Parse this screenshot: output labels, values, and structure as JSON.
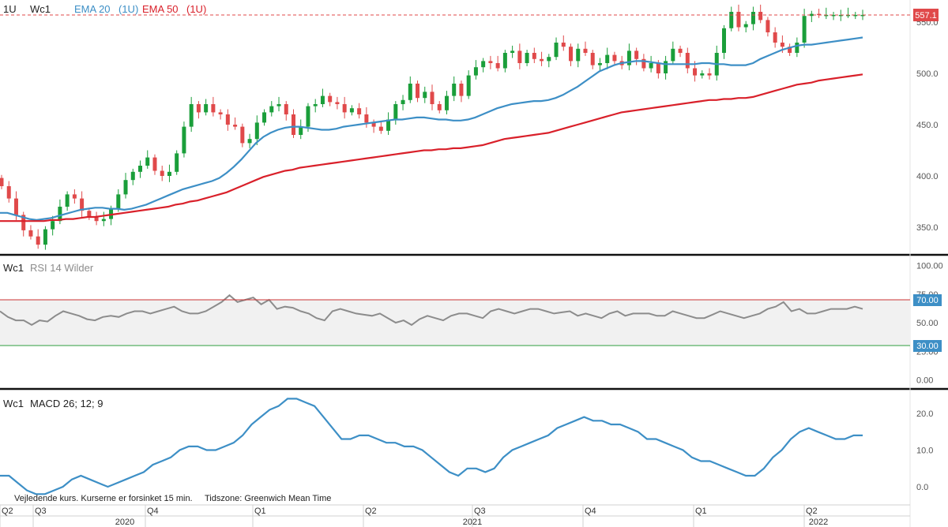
{
  "colors": {
    "up": "#1a9e3a",
    "down": "#e0494a",
    "ema20": "#3d8fc6",
    "ema50": "#d9202a",
    "rsi": "#8c8c8c",
    "macd": "#3d8fc6",
    "rsi_upper": "#cc3333",
    "rsi_lower": "#2e9e3e",
    "price_tag": "#e0494a",
    "level_tag": "#3d8fc6"
  },
  "price_panel": {
    "interval": "1U",
    "symbol": "Wc1",
    "ema20_label": "EMA 20",
    "ema20_interval": "(1U)",
    "ema50_label": "EMA 50",
    "ema50_interval": "(1U)",
    "last_price": "557.1"
  },
  "rsi_panel": {
    "symbol": "Wc1",
    "label": "RSI 14 Wilder",
    "upper_tag": "70.00",
    "lower_tag": "30.00"
  },
  "macd_panel": {
    "symbol": "Wc1",
    "label": "MACD 26; 12; 9"
  },
  "footer": {
    "disclaimer": "Vejledende kurs. Kurserne er forsinket 15 min.",
    "timezone": "Tidszone: Greenwich Mean Time"
  },
  "x_axis": {
    "quarters": [
      "Q2",
      "Q3",
      "Q4",
      "Q1",
      "Q2",
      "Q3",
      "Q4",
      "Q1",
      "Q2"
    ],
    "years": [
      "2020",
      "2021",
      "2022"
    ]
  },
  "chart_data": [
    {
      "type": "candlestick",
      "ylim": [
        320,
        565
      ],
      "y_ticks": [
        "350.0",
        "400.0",
        "450.0",
        "500.0",
        "550.0"
      ],
      "series": [
        {
          "name": "EMA 20",
          "values": [
            364,
            364,
            362,
            360,
            358,
            357,
            358,
            359,
            361,
            363,
            365,
            367,
            368,
            369,
            369,
            368,
            368,
            367,
            368,
            370,
            372,
            375,
            378,
            381,
            384,
            387,
            389,
            391,
            393,
            395,
            398,
            403,
            409,
            416,
            424,
            432,
            438,
            442,
            445,
            447,
            448,
            448,
            447,
            446,
            445,
            445,
            446,
            448,
            449,
            450,
            451,
            452,
            453,
            454,
            455,
            455,
            456,
            457,
            457,
            456,
            455,
            455,
            454,
            454,
            455,
            457,
            460,
            463,
            466,
            468,
            470,
            471,
            472,
            473,
            473,
            474,
            476,
            479,
            483,
            487,
            492,
            497,
            502,
            505,
            508,
            510,
            511,
            512,
            512,
            511,
            510,
            509,
            509,
            509,
            509,
            509,
            510,
            510,
            509,
            509,
            508,
            508,
            508,
            510,
            514,
            517,
            520,
            523,
            525,
            527,
            528,
            528,
            529,
            530,
            531,
            532,
            533,
            534,
            535
          ]
        },
        {
          "name": "EMA 50",
          "values": [
            356,
            356,
            356,
            356,
            356,
            356,
            356,
            357,
            357,
            358,
            358,
            359,
            360,
            360,
            361,
            362,
            363,
            364,
            365,
            366,
            367,
            368,
            369,
            370,
            372,
            373,
            375,
            376,
            378,
            380,
            382,
            384,
            387,
            390,
            393,
            396,
            399,
            401,
            403,
            405,
            406,
            408,
            409,
            410,
            411,
            412,
            413,
            414,
            415,
            416,
            417,
            418,
            419,
            420,
            421,
            422,
            423,
            424,
            425,
            425,
            426,
            426,
            427,
            427,
            428,
            429,
            430,
            432,
            434,
            436,
            437,
            438,
            439,
            440,
            441,
            442,
            444,
            446,
            448,
            450,
            452,
            454,
            456,
            458,
            460,
            462,
            463,
            464,
            465,
            466,
            467,
            468,
            469,
            470,
            471,
            472,
            473,
            474,
            474,
            475,
            475,
            476,
            476,
            477,
            479,
            481,
            483,
            485,
            487,
            489,
            490,
            491,
            493,
            494,
            495,
            496,
            497,
            498,
            499
          ]
        }
      ],
      "ohlc_note": "weekly candles, approximate",
      "closes": [
        390,
        378,
        362,
        347,
        341,
        333,
        348,
        356,
        370,
        382,
        378,
        366,
        360,
        356,
        358,
        368,
        382,
        396,
        404,
        410,
        418,
        405,
        400,
        404,
        422,
        448,
        470,
        462,
        470,
        462,
        460,
        450,
        448,
        432,
        436,
        452,
        462,
        468,
        470,
        460,
        440,
        448,
        468,
        470,
        478,
        472,
        470,
        462,
        466,
        460,
        452,
        448,
        444,
        455,
        470,
        474,
        490,
        476,
        482,
        470,
        464,
        478,
        490,
        478,
        498,
        506,
        512,
        510,
        505,
        520,
        522,
        510,
        520,
        514,
        512,
        516,
        530,
        526,
        512,
        524,
        520,
        508,
        510,
        518,
        512,
        508,
        522,
        514,
        505,
        510,
        500,
        512,
        524,
        520,
        505,
        498,
        500,
        498,
        520,
        544,
        560,
        545,
        548,
        560,
        552,
        540,
        530,
        526,
        520,
        530,
        556,
        558,
        557,
        557,
        557,
        557,
        557,
        557,
        557
      ],
      "last": 557.1
    },
    {
      "type": "line",
      "ylim": [
        0,
        100
      ],
      "y_ticks": [
        "0.00",
        "25.00",
        "50.00",
        "75.00",
        "100.00"
      ],
      "levels": [
        70,
        30
      ],
      "series": [
        {
          "name": "RSI 14 Wilder",
          "values": [
            60,
            55,
            52,
            52,
            48,
            52,
            51,
            56,
            60,
            58,
            56,
            53,
            52,
            55,
            56,
            55,
            58,
            60,
            60,
            58,
            60,
            62,
            64,
            60,
            58,
            58,
            60,
            64,
            68,
            74,
            68,
            70,
            72,
            66,
            70,
            62,
            64,
            63,
            60,
            58,
            54,
            52,
            60,
            62,
            60,
            58,
            57,
            56,
            58,
            54,
            50,
            52,
            48,
            53,
            56,
            54,
            52,
            56,
            58,
            58,
            56,
            54,
            60,
            62,
            60,
            58,
            60,
            62,
            62,
            60,
            58,
            59,
            60,
            56,
            58,
            56,
            54,
            58,
            60,
            56,
            58,
            58,
            58,
            56,
            56,
            60,
            58,
            56,
            54,
            54,
            57,
            60,
            58,
            56,
            54,
            56,
            58,
            62,
            64,
            68,
            60,
            62,
            58,
            58,
            60,
            62,
            62,
            62,
            64,
            62
          ]
        }
      ]
    },
    {
      "type": "line",
      "ylim": [
        -3,
        26
      ],
      "y_ticks": [
        "0.0",
        "10.0",
        "20.0"
      ],
      "series": [
        {
          "name": "MACD 26; 12; 9",
          "values": [
            3,
            3,
            1,
            -1,
            -2,
            -2,
            -1,
            0,
            2,
            3,
            2,
            1,
            0,
            1,
            2,
            3,
            4,
            6,
            7,
            8,
            10,
            11,
            11,
            10,
            10,
            11,
            12,
            14,
            17,
            19,
            21,
            22,
            24,
            24,
            23,
            22,
            19,
            16,
            13,
            13,
            14,
            14,
            13,
            12,
            12,
            11,
            11,
            10,
            8,
            6,
            4,
            3,
            5,
            5,
            4,
            5,
            8,
            10,
            11,
            12,
            13,
            14,
            16,
            17,
            18,
            19,
            18,
            18,
            17,
            17,
            16,
            15,
            13,
            13,
            12,
            11,
            10,
            8,
            7,
            7,
            6,
            5,
            4,
            3,
            3,
            5,
            8,
            10,
            13,
            15,
            16,
            15,
            14,
            13,
            13,
            14,
            14
          ]
        }
      ]
    }
  ]
}
